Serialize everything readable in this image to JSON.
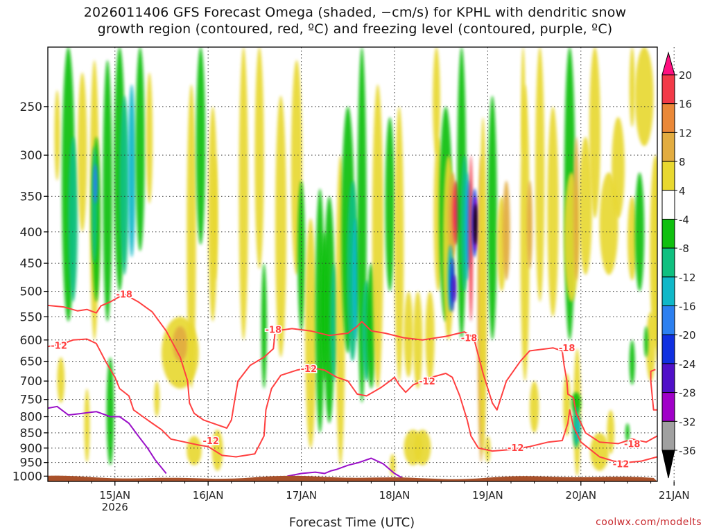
{
  "title": {
    "line1": "2026011406 GFS Forecast Omega (shaded, −cm/s) for KPHL with dendritic snow",
    "line2": "growth region (contoured, red, ºC) and freezing level (contoured, purple, ºC)"
  },
  "xlabel": "Forecast Time (UTC)",
  "credit": "coolwx.com/modelts",
  "colors": {
    "dgz": "#ff4040",
    "freezing": "#9a10c8",
    "ground": "#a9512a"
  },
  "chart_data": {
    "type": "heatmap",
    "y_axis": {
      "label": "",
      "scale": "log-pressure",
      "ylim": [
        1020,
        200
      ],
      "ticks": [
        250,
        300,
        350,
        400,
        450,
        500,
        550,
        600,
        650,
        700,
        750,
        800,
        850,
        900,
        950,
        1000
      ]
    },
    "x_axis": {
      "label": "Forecast Time (UTC)",
      "range_days_from_jan15": [
        -0.72,
        5.82
      ],
      "ticks": [
        {
          "label": "15JAN",
          "sub": "2026",
          "day": 0
        },
        {
          "label": "16JAN",
          "sub": "",
          "day": 1
        },
        {
          "label": "17JAN",
          "sub": "",
          "day": 2
        },
        {
          "label": "18JAN",
          "sub": "",
          "day": 3
        },
        {
          "label": "19JAN",
          "sub": "",
          "day": 4
        },
        {
          "label": "20JAN",
          "sub": "",
          "day": 5
        },
        {
          "label": "21JAN",
          "sub": "",
          "day": 6
        }
      ]
    },
    "colorbar": {
      "levels": [
        "20",
        "16",
        "12",
        "8",
        "4",
        "-4",
        "-8",
        "-12",
        "-16",
        "-20",
        "-24",
        "-28",
        "-32",
        "-36"
      ],
      "colors": [
        "#ff1080",
        "#f23a48",
        "#ea8838",
        "#e2ac40",
        "#e8d830",
        "#ffffff",
        "#10c010",
        "#10c080",
        "#10b8c8",
        "#2c80f0",
        "#1030e0",
        "#5010c8",
        "#a000c8",
        "#a0a0a0",
        "#000000"
      ]
    },
    "contour_labels_dgz": [
      {
        "text": "-18",
        "day": 0.1,
        "p": 505
      },
      {
        "text": "-12",
        "day": -0.6,
        "p": 612
      },
      {
        "text": "-18",
        "day": 1.7,
        "p": 577
      },
      {
        "text": "-12",
        "day": 2.08,
        "p": 668
      },
      {
        "text": "-12",
        "day": 3.35,
        "p": 700
      },
      {
        "text": "-18",
        "day": 3.8,
        "p": 595
      },
      {
        "text": "-18",
        "day": 4.85,
        "p": 618
      },
      {
        "text": "-12",
        "day": 1.03,
        "p": 875
      },
      {
        "text": "-12",
        "day": 4.3,
        "p": 898
      },
      {
        "text": "-18",
        "day": 5.55,
        "p": 885
      },
      {
        "text": "-12",
        "day": 5.43,
        "p": 955
      }
    ],
    "omega_features": [
      {
        "label": "+20",
        "day": 3.68,
        "p": 370
      },
      {
        "label": "-36",
        "day": 3.87,
        "p": 400
      },
      {
        "label": "-28",
        "day": 3.65,
        "p": 520
      },
      {
        "label": "+12",
        "day": 5.15,
        "p": 290
      }
    ],
    "dgz_contours_hpa": [
      -18,
      -12
    ],
    "freezing_contour_c": [
      0
    ]
  }
}
